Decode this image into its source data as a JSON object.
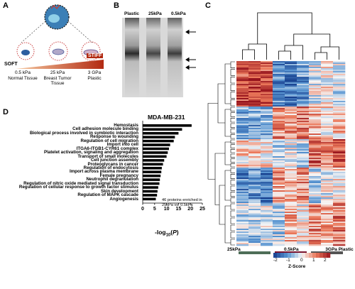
{
  "panels": {
    "a": "A",
    "b": "B",
    "c": "C",
    "d": "D"
  },
  "panel_a": {
    "soft_label": "SOFT",
    "stiff_label": "STIFF",
    "conditions": [
      {
        "stiffness": "0.5 kPa",
        "tissue": "Normal Tissue"
      },
      {
        "stiffness": "25 kPa",
        "tissue": "Breast Tumor Tissue"
      },
      {
        "stiffness": "3 GPa",
        "tissue": "Plastic"
      }
    ],
    "colors": {
      "gradient_start": "#f6c9a0",
      "gradient_end": "#b22a12"
    }
  },
  "panel_b": {
    "lanes": [
      "Plastic",
      "25kPa",
      "0.5kPa"
    ],
    "arrow_count": 3
  },
  "heatmap": {
    "groups": [
      {
        "label": "25kPa",
        "color": "#4e6e58"
      },
      {
        "label": "0.5kPa",
        "color": "#7a1530"
      },
      {
        "label": "3GPa Plastic",
        "color": "#555555"
      }
    ],
    "scale": {
      "ticks": [
        "-2",
        "-1",
        "0",
        "1",
        "2"
      ],
      "title": "Z-Score"
    },
    "columns": 9
  },
  "chart_data": {
    "type": "bar",
    "orientation": "horizontal",
    "title": "MDA-MB-231",
    "xlabel": "-log10(P)",
    "xlim": [
      0,
      25
    ],
    "xticks": [
      "0",
      "5",
      "10",
      "15",
      "20",
      "25"
    ],
    "annotation": "46 proteins enriched in 25kPa vs. 0.5kPa",
    "categories": [
      "Hemostasis",
      "Cell adhesion molecule binding",
      "Biological process involved in symbiotic interaction",
      "Response to wounding",
      "Regulation of cell migration",
      "Import into cell",
      "ITGA6-ITGB1-CYR61 complex",
      "Platelet activation, signaling and aggregation",
      "Transport of small molecules",
      "Cell junction assembly",
      "Proteoglycans in cancer",
      "Regulation of endocytosis",
      "Import across plasma membrane",
      "Female pregnancy",
      "Neutrophil degranulation",
      "Regulation of nitric oxide mediated signal transduction",
      "Regulation of cellular response to growth factor stimulus",
      "Skin development",
      "Regulation of MAPK cascade",
      "Angiogenesis"
    ],
    "values": [
      20.5,
      16.5,
      15.0,
      13.5,
      13.0,
      11.5,
      11.0,
      10.5,
      10.0,
      9.0,
      8.5,
      8.0,
      7.8,
      7.5,
      7.2,
      7.0,
      6.5,
      6.2,
      6.0,
      5.5
    ]
  }
}
